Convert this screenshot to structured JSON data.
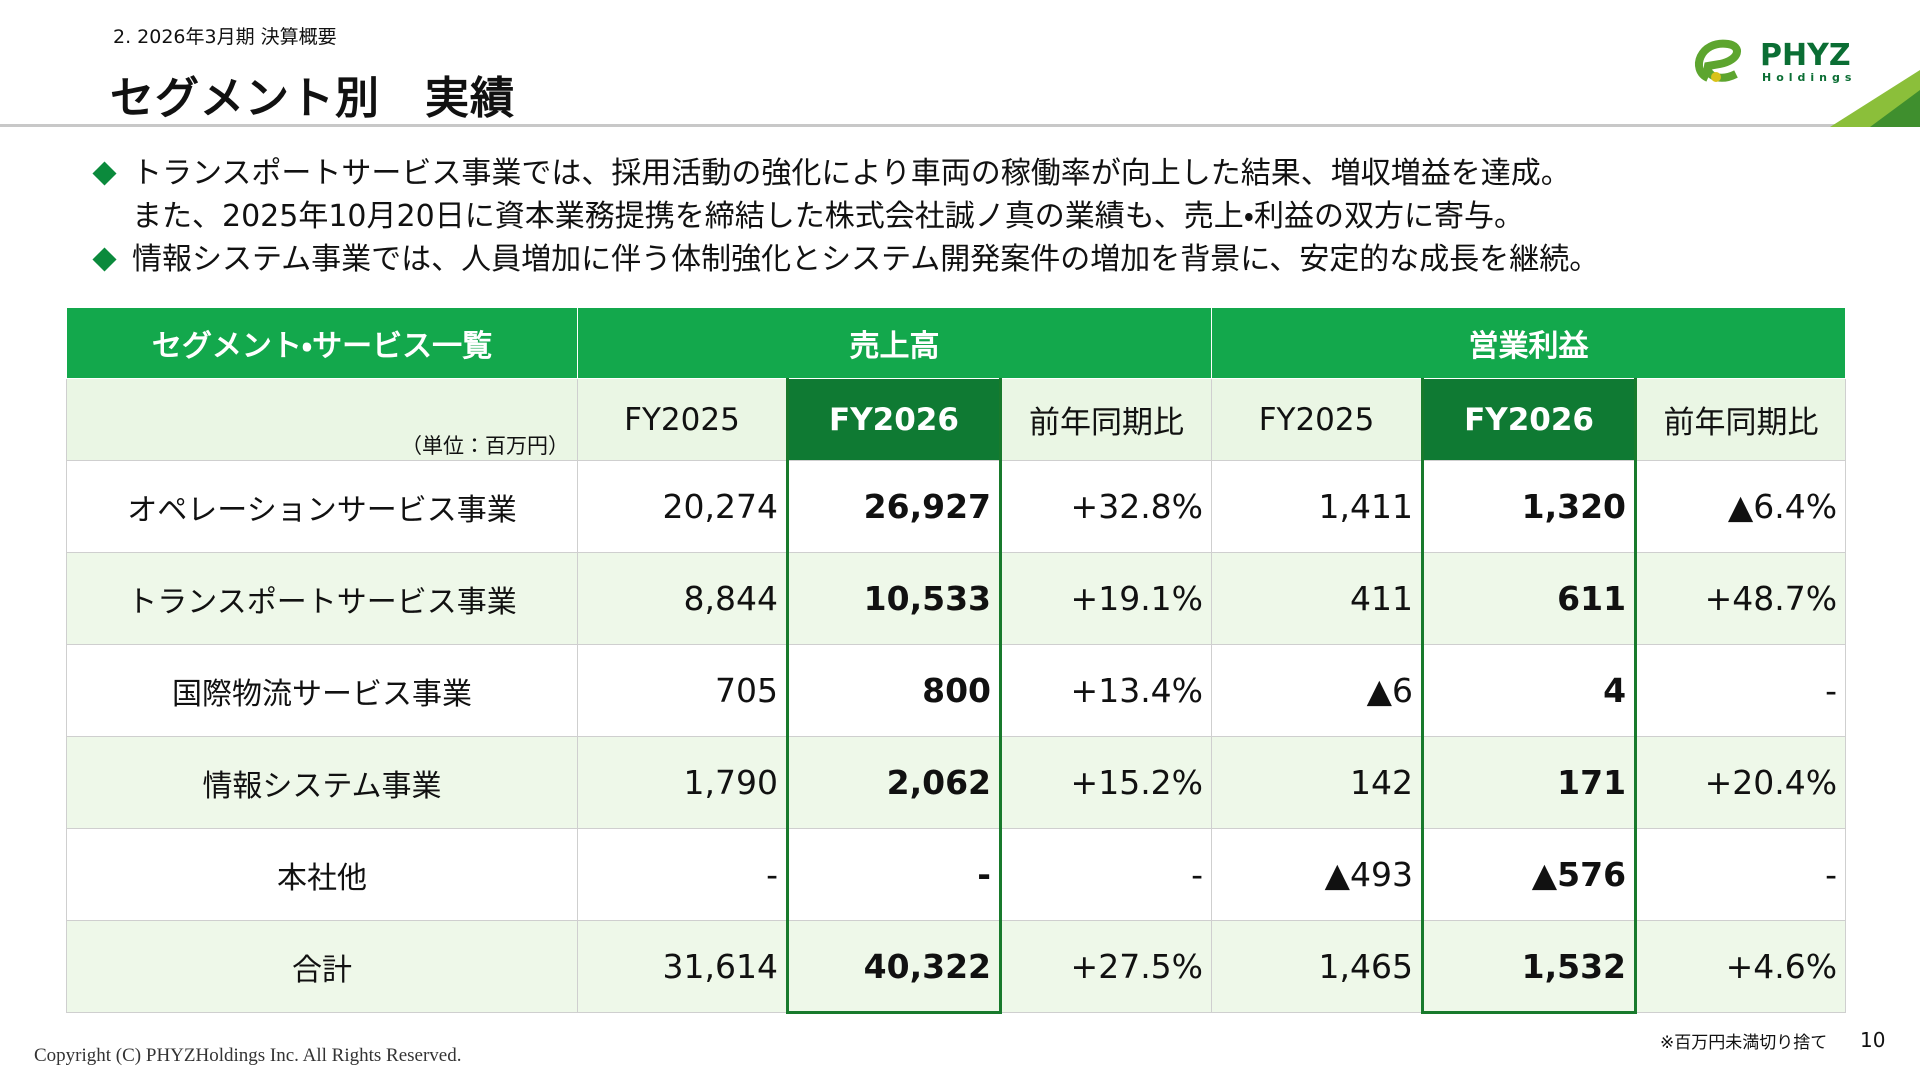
{
  "header": {
    "section": "2. 2026年3月期 決算概要",
    "title": "セグメント別　実績"
  },
  "logo": {
    "name": "PHYZ",
    "sub": "Holdings"
  },
  "bullets": [
    [
      "トランスポートサービス事業では、採用活動の強化により車両の稼働率が向上した結果、増収増益を達成。",
      "また、2025年10月20日に資本業務提携を締結した株式会社誠ノ真の業績も、売上・利益の双方に寄与。"
    ],
    [
      "情報システム事業では、人員増加に伴う体制強化とシステム開発案件の増加を背景に、安定的な成長を継続。"
    ]
  ],
  "table": {
    "header": {
      "segment": "セグメント・サービス一覧",
      "sales": "売上高",
      "profit": "営業利益"
    },
    "unit": "（単位：百万円）",
    "columns": [
      "FY2025",
      "FY2026",
      "前年同期比",
      "FY2025",
      "FY2026",
      "前年同期比"
    ],
    "rows": [
      {
        "label": "オペレーションサービス事業",
        "cells": [
          "20,274",
          "26,927",
          "+32.8%",
          "1,411",
          "1,320",
          "▲6.4%"
        ]
      },
      {
        "label": "トランスポートサービス事業",
        "cells": [
          "8,844",
          "10,533",
          "+19.1%",
          "411",
          "611",
          "+48.7%"
        ]
      },
      {
        "label": "国際物流サービス事業",
        "cells": [
          "705",
          "800",
          "+13.4%",
          "▲6",
          "4",
          "-"
        ]
      },
      {
        "label": "情報システム事業",
        "cells": [
          "1,790",
          "2,062",
          "+15.2%",
          "142",
          "171",
          "+20.4%"
        ]
      },
      {
        "label": "本社他",
        "cells": [
          "-",
          "-",
          "-",
          "▲493",
          "▲576",
          "-"
        ]
      },
      {
        "label": "合計",
        "cells": [
          "31,614",
          "40,322",
          "+27.5%",
          "1,465",
          "1,532",
          "+4.6%"
        ]
      }
    ]
  },
  "footer": {
    "note": "※百万円未満切り捨て",
    "page": "10",
    "copyright": "Copyright (C) PHYZHoldings Inc. All Rights Reserved."
  }
}
